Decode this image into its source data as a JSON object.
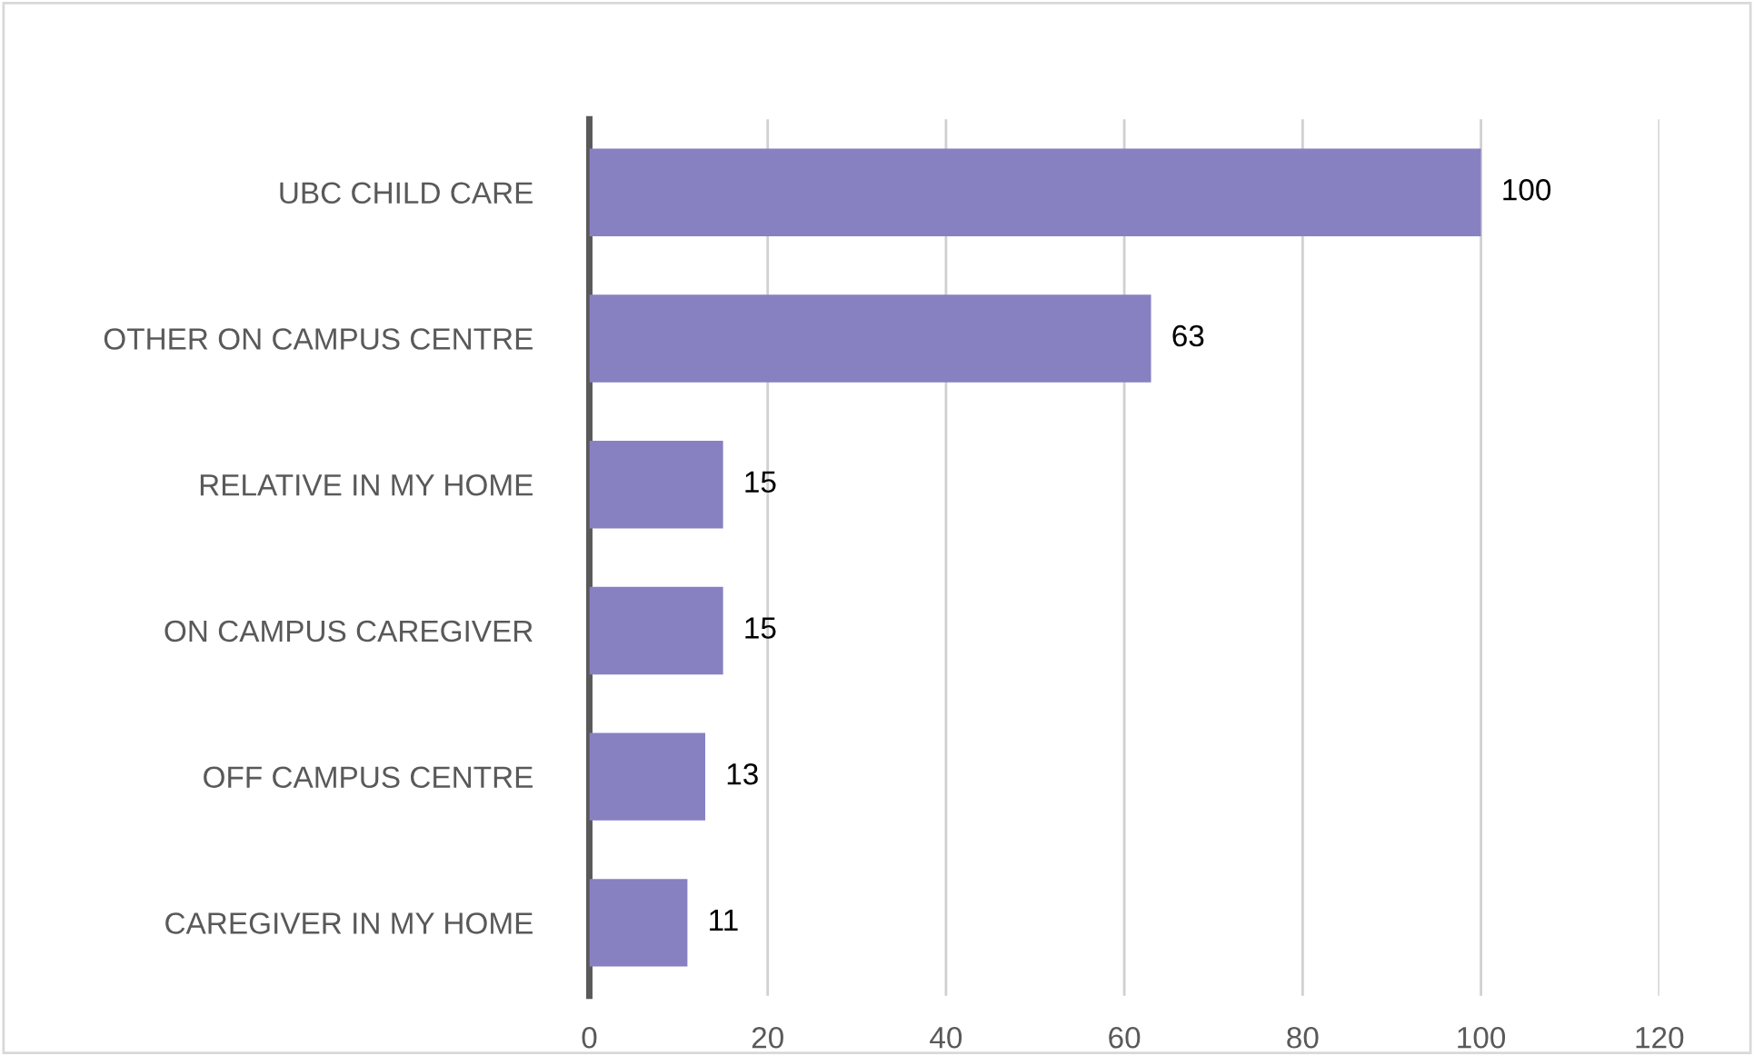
{
  "chart_data": {
    "type": "bar",
    "orientation": "horizontal",
    "categories": [
      "UBC CHILD CARE",
      "OTHER ON CAMPUS CENTRE",
      "RELATIVE IN MY HOME",
      "ON CAMPUS CAREGIVER",
      "OFF CAMPUS CENTRE",
      "CAREGIVER IN MY HOME"
    ],
    "values": [
      100,
      63,
      15,
      15,
      13,
      11
    ],
    "color": "#8781c2",
    "xlim": [
      0,
      120
    ],
    "xticks": [
      0,
      20,
      40,
      60,
      80,
      100,
      120
    ],
    "grid": "x",
    "legend": false,
    "data_labels": true
  }
}
